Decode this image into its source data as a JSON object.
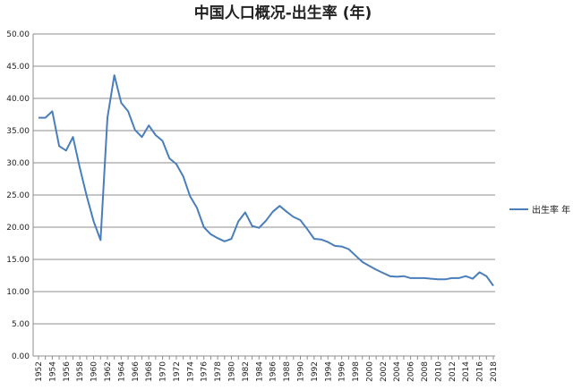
{
  "chart_data": {
    "type": "line",
    "title": "中国人口概况-出生率 (年)",
    "xlabel": "",
    "ylabel": "",
    "ylim": [
      0,
      50
    ],
    "yticks": [
      "0.00",
      "5.00",
      "10.00",
      "15.00",
      "20.00",
      "25.00",
      "30.00",
      "35.00",
      "40.00",
      "45.00",
      "50.00"
    ],
    "x": [
      1952,
      1953,
      1954,
      1955,
      1956,
      1957,
      1958,
      1959,
      1960,
      1961,
      1962,
      1963,
      1964,
      1965,
      1966,
      1967,
      1968,
      1969,
      1970,
      1971,
      1972,
      1973,
      1974,
      1975,
      1976,
      1977,
      1978,
      1979,
      1980,
      1981,
      1982,
      1983,
      1984,
      1985,
      1986,
      1987,
      1988,
      1989,
      1990,
      1991,
      1992,
      1993,
      1994,
      1995,
      1996,
      1997,
      1998,
      1999,
      2000,
      2001,
      2002,
      2003,
      2004,
      2005,
      2006,
      2007,
      2008,
      2009,
      2010,
      2011,
      2012,
      2013,
      2014,
      2015,
      2016,
      2017,
      2018
    ],
    "xticks": [
      "1952",
      "1954",
      "1956",
      "1958",
      "1960",
      "1962",
      "1964",
      "1966",
      "1968",
      "1970",
      "1972",
      "1974",
      "1976",
      "1978",
      "1980",
      "1982",
      "1984",
      "1986",
      "1988",
      "1990",
      "1992",
      "1994",
      "1996",
      "1998",
      "2000",
      "2002",
      "2004",
      "2006",
      "2008",
      "2010",
      "2012",
      "2014",
      "2016",
      "2018"
    ],
    "grid": true,
    "legend_position": "right",
    "series": [
      {
        "name": "出生率 年",
        "color": "#4a7ebb",
        "values": [
          37.0,
          37.0,
          38.0,
          32.6,
          31.9,
          34.0,
          29.2,
          24.8,
          20.9,
          18.0,
          37.0,
          43.6,
          39.3,
          38.0,
          35.1,
          34.0,
          35.8,
          34.3,
          33.4,
          30.7,
          29.8,
          27.9,
          24.8,
          23.0,
          20.0,
          18.9,
          18.3,
          17.8,
          18.2,
          20.9,
          22.3,
          20.2,
          19.9,
          21.0,
          22.4,
          23.3,
          22.4,
          21.6,
          21.1,
          19.7,
          18.2,
          18.1,
          17.7,
          17.1,
          17.0,
          16.6,
          15.6,
          14.6,
          14.0,
          13.4,
          12.9,
          12.4,
          12.3,
          12.4,
          12.1,
          12.1,
          12.1,
          12.0,
          11.9,
          11.9,
          12.1,
          12.1,
          12.4,
          12.0,
          13.0,
          12.4,
          10.9
        ]
      }
    ]
  }
}
